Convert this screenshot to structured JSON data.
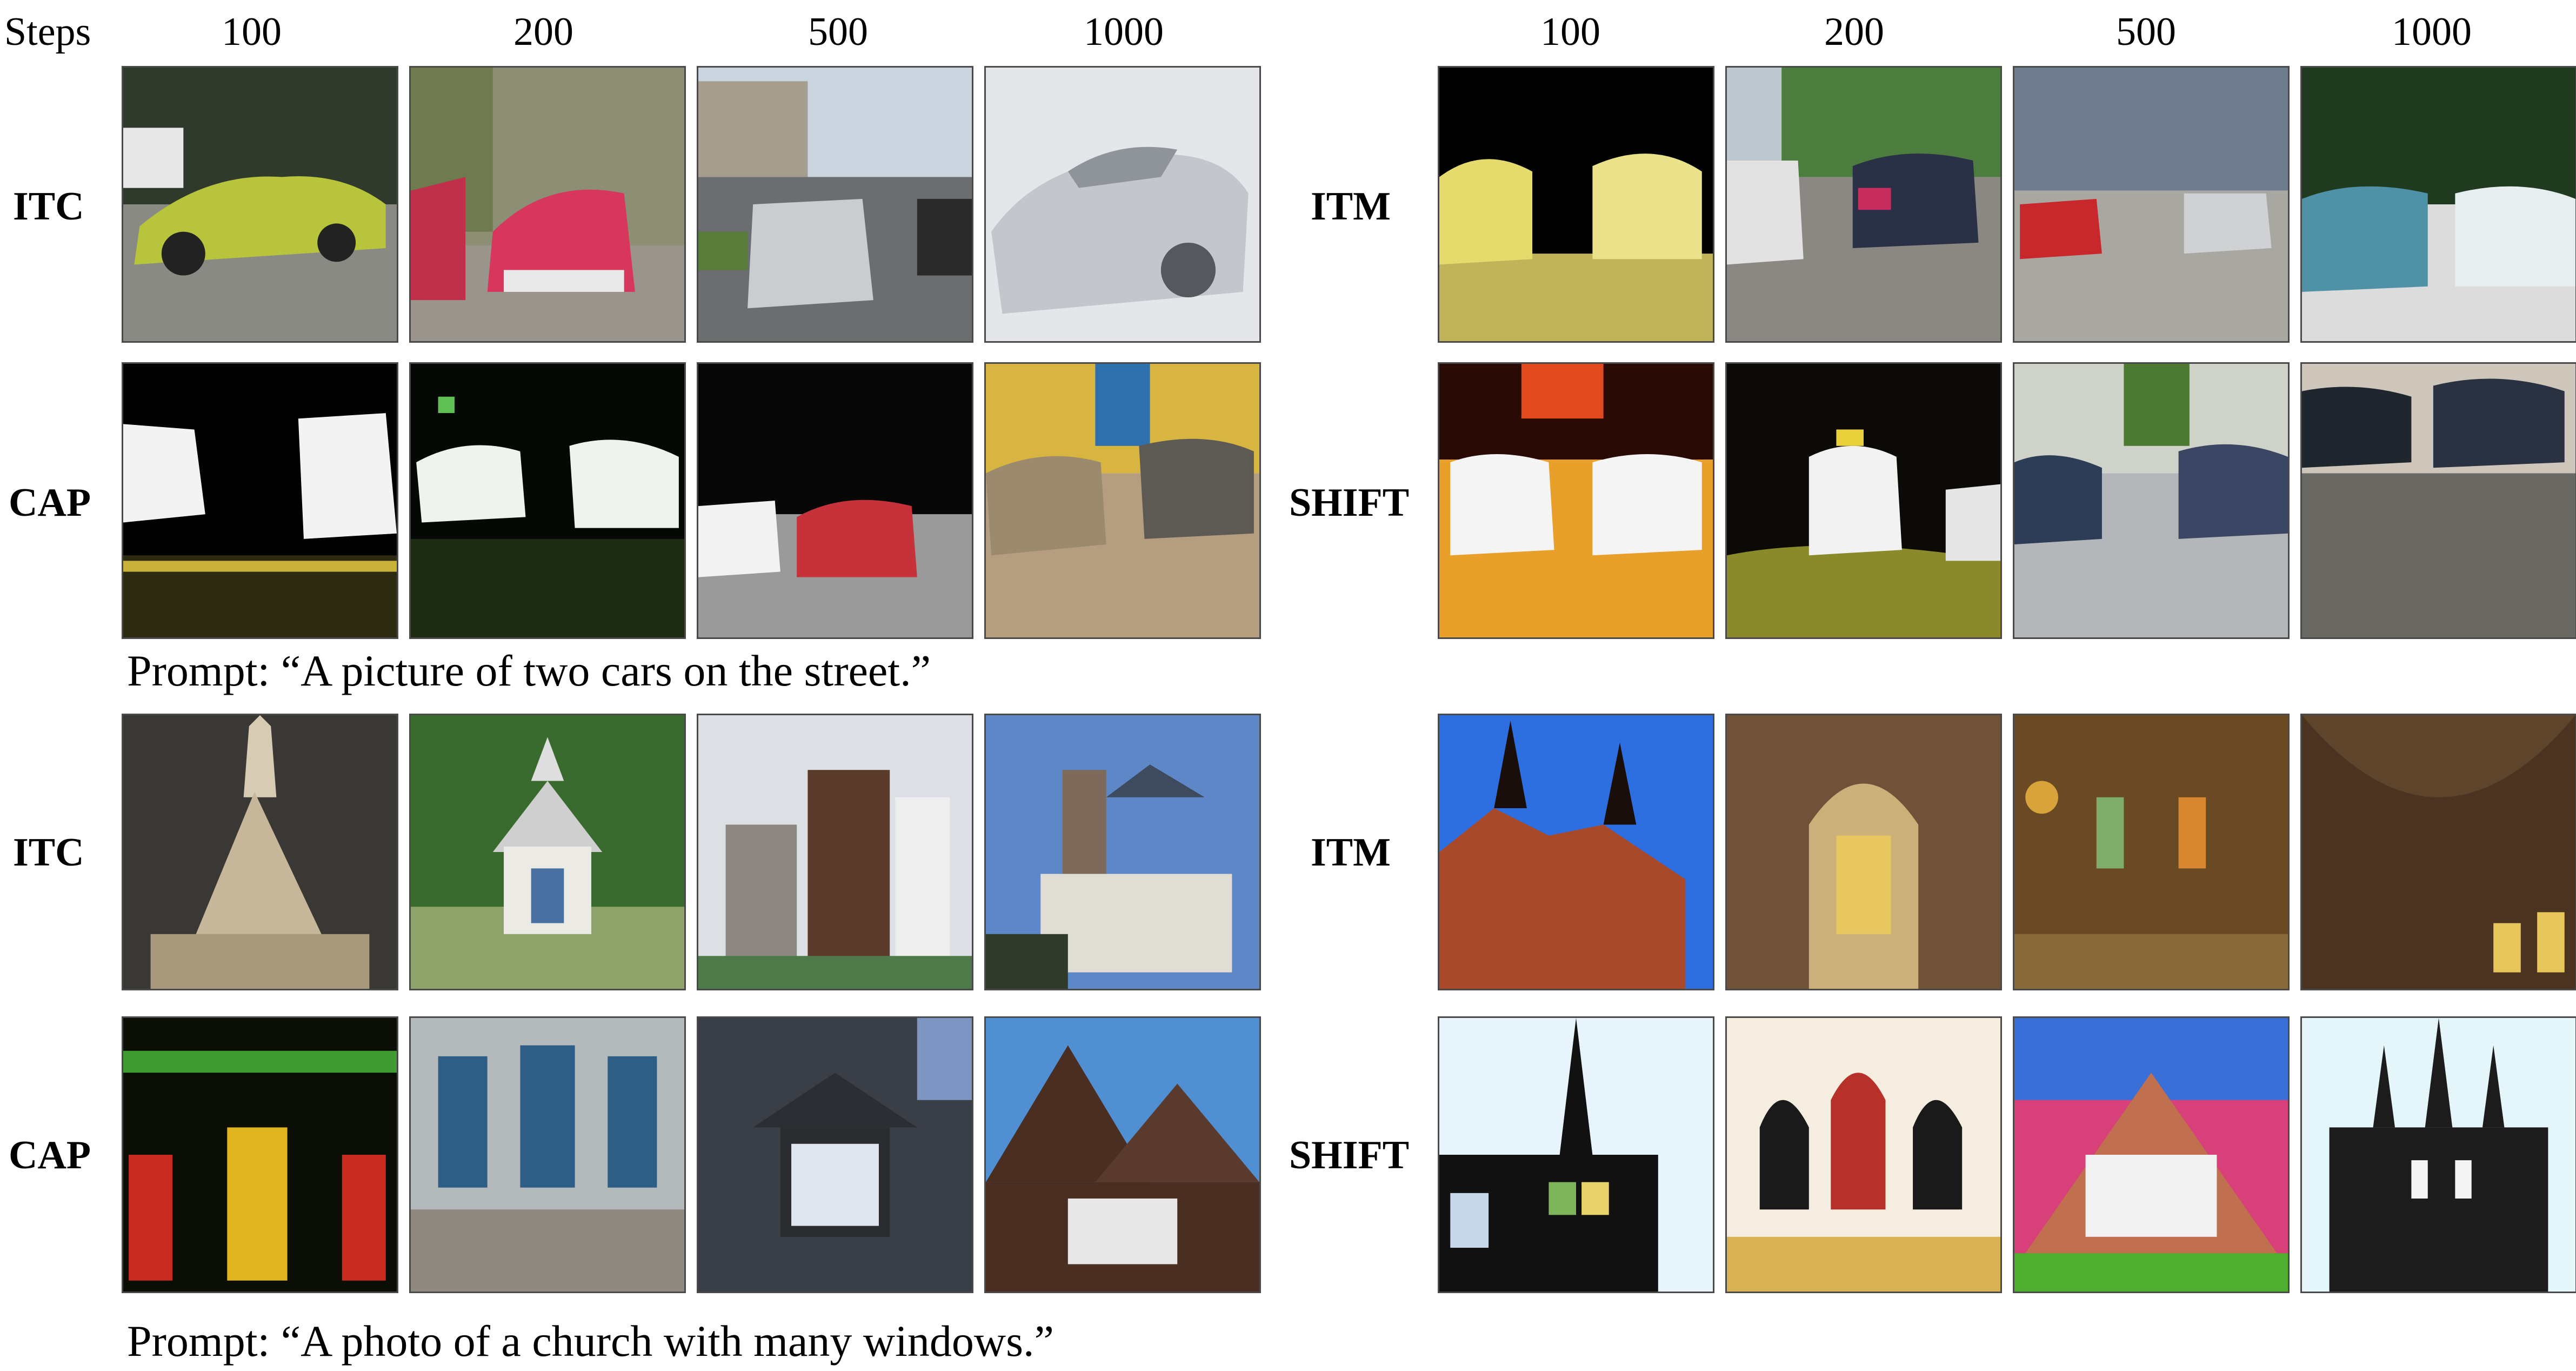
{
  "figure": {
    "steps_label": "Steps",
    "step_values": [
      "100",
      "200",
      "500",
      "1000"
    ],
    "panels": [
      {
        "id": "cars",
        "prompt": "Prompt: “A picture of two cars on the street.”",
        "rows_left": [
          "ITC",
          "CAP"
        ],
        "rows_right": [
          "ITM",
          "SHIFT"
        ]
      },
      {
        "id": "church",
        "prompt": "Prompt: “A photo of a church with many windows.”",
        "rows_left": [
          "ITC",
          "CAP"
        ],
        "rows_right": [
          "ITM",
          "SHIFT"
        ]
      }
    ]
  }
}
